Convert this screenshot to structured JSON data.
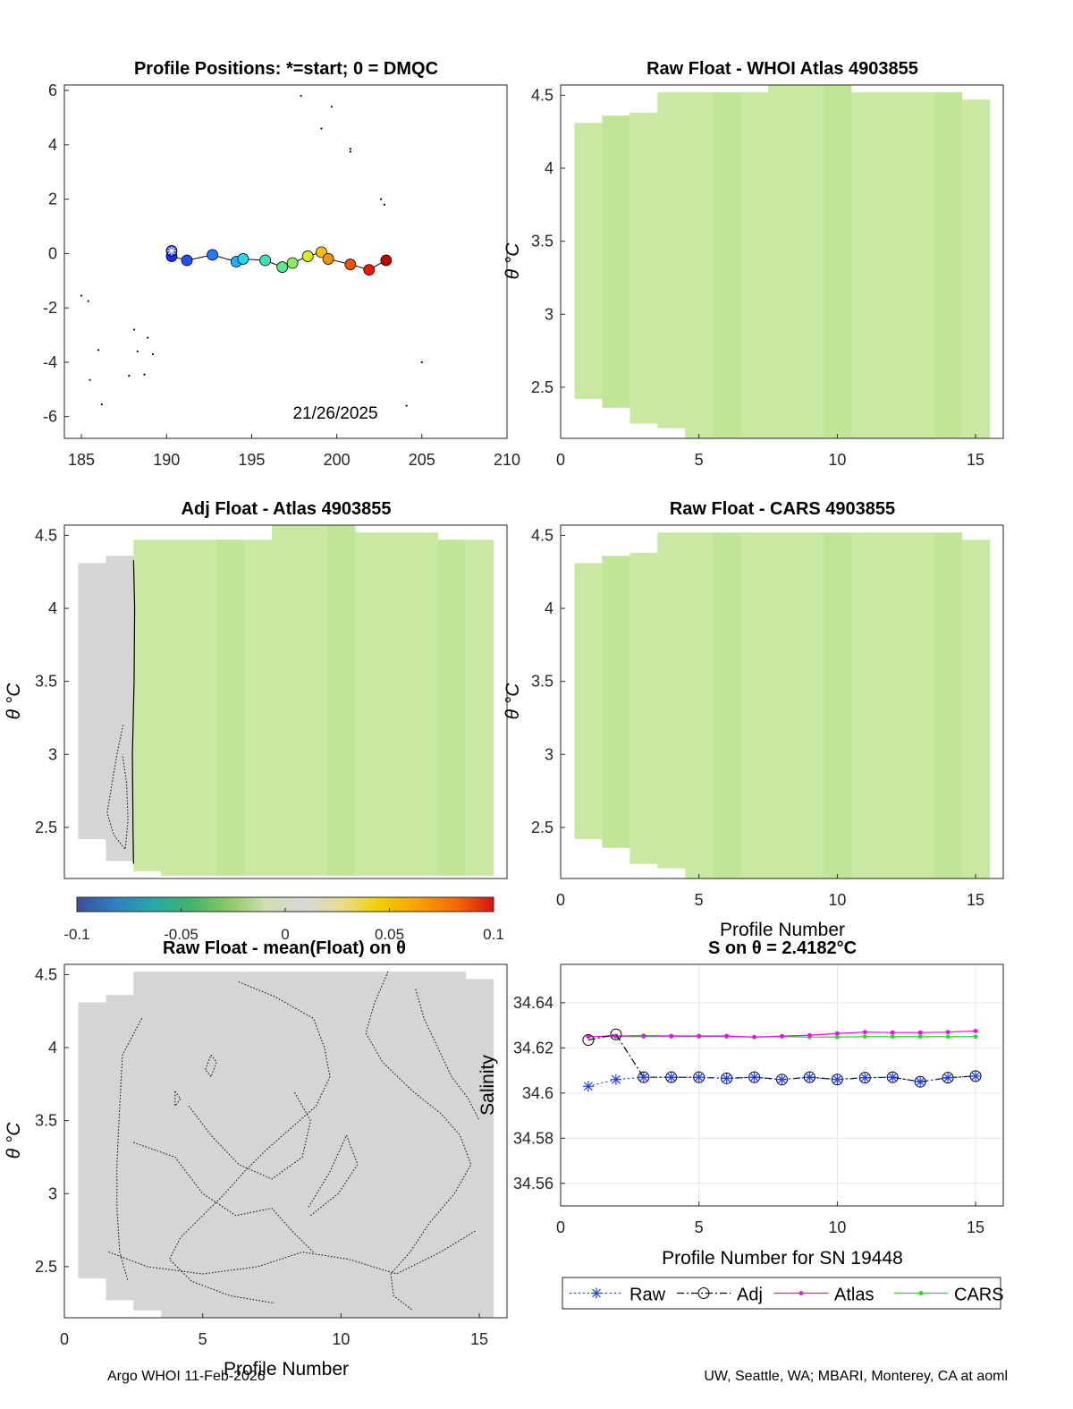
{
  "footer": {
    "left": "Argo WHOI 11-Feb-2026",
    "right": "UW, Seattle, WA; MBARI, Monterey, CA at aoml"
  },
  "colors": {
    "field_green": "#c9e9a3",
    "field_green_dark": "#c1e596",
    "field_gray": "#d5d5d5",
    "raw": "#1f3fff",
    "adj": "#000000",
    "atlas": "#ff00ff",
    "cars": "#22dd22",
    "grid": "#e6e6e6"
  },
  "chart_data": [
    {
      "id": "positions",
      "type": "scatter",
      "title": "Profile Positions: *=start; 0 = DMQC",
      "xlim": [
        184,
        210
      ],
      "ylim": [
        -6.8,
        6.2
      ],
      "xticks": [
        "185",
        "190",
        "195",
        "200",
        "205",
        "210"
      ],
      "yticks": [
        "6",
        "4",
        "2",
        "0",
        "-2",
        "-4",
        "-6"
      ],
      "annotation": "21/26/2025",
      "track_lon": [
        190.3,
        191.2,
        192.7,
        194.1,
        194.5,
        195.8,
        196.8,
        197.4,
        198.3,
        199.1,
        199.5,
        200.8,
        201.9,
        202.9
      ],
      "track_lat": [
        -0.1,
        -0.25,
        -0.05,
        -0.3,
        -0.2,
        -0.25,
        -0.5,
        -0.35,
        -0.1,
        0.05,
        -0.2,
        -0.4,
        -0.6,
        -0.25
      ],
      "track_colors": [
        "#1a2cff",
        "#2050ff",
        "#2a78ff",
        "#1ab0ff",
        "#20d8f0",
        "#39e0b8",
        "#5ae88c",
        "#8cee60",
        "#d8f020",
        "#ffc000",
        "#ff9000",
        "#ff5000",
        "#ee1a00",
        "#c40000"
      ],
      "start": [
        190.3,
        0.1
      ],
      "islands": [
        [
          197.9,
          5.8
        ],
        [
          199.7,
          5.4
        ],
        [
          199.1,
          4.6
        ],
        [
          200.8,
          3.85
        ],
        [
          200.8,
          3.75
        ],
        [
          202.6,
          2.0
        ],
        [
          202.8,
          1.8
        ],
        [
          185.0,
          -1.55
        ],
        [
          185.4,
          -1.75
        ],
        [
          186.0,
          -3.55
        ],
        [
          188.1,
          -2.8
        ],
        [
          188.9,
          -3.1
        ],
        [
          188.3,
          -3.6
        ],
        [
          189.2,
          -3.7
        ],
        [
          187.8,
          -4.5
        ],
        [
          188.7,
          -4.45
        ],
        [
          185.5,
          -4.65
        ],
        [
          186.2,
          -5.55
        ],
        [
          205.0,
          -4.0
        ],
        [
          204.1,
          -5.6
        ]
      ]
    },
    {
      "id": "raw_whoi",
      "type": "heatmap",
      "title": "Raw Float - WHOI Atlas  4903855",
      "xlim": [
        0,
        16
      ],
      "ylim": [
        2.15,
        4.57
      ],
      "xticks": [
        "0",
        "5",
        "10",
        "15"
      ],
      "yticks": [
        "4.5",
        "4",
        "3.5",
        "3",
        "2.5"
      ],
      "ylabel": "θ °C",
      "columns_top": [
        4.31,
        4.36,
        4.38,
        4.52,
        4.52,
        4.52,
        4.52,
        4.57,
        4.57,
        4.57,
        4.52,
        4.52,
        4.52,
        4.52,
        4.47
      ],
      "columns_bottom": [
        2.42,
        2.36,
        2.25,
        2.22,
        2.15,
        2.15,
        2.15,
        2.15,
        2.15,
        2.15,
        2.15,
        2.15,
        2.15,
        2.15,
        2.15
      ]
    },
    {
      "id": "adj_atlas",
      "type": "heatmap",
      "title": "Adj Float - Atlas  4903855",
      "xlim": [
        0,
        16
      ],
      "ylim": [
        2.15,
        4.57
      ],
      "xticks": [],
      "yticks": [
        "4.5",
        "4",
        "3.5",
        "3",
        "2.5"
      ],
      "ylabel": "θ °C",
      "columns_top": [
        4.31,
        4.36,
        4.47,
        4.47,
        4.47,
        4.47,
        4.47,
        4.57,
        4.57,
        4.57,
        4.52,
        4.52,
        4.52,
        4.47,
        4.47
      ],
      "columns_bottom": [
        2.42,
        2.27,
        2.2,
        2.17,
        2.17,
        2.17,
        2.17,
        2.17,
        2.17,
        2.17,
        2.17,
        2.17,
        2.17,
        2.17,
        2.17
      ],
      "gray_columns": [
        1,
        2
      ],
      "colorbar": {
        "ticks": [
          "-0.1",
          "-0.05",
          "0",
          "0.05",
          "0.1"
        ],
        "stops": [
          "#3d4f96",
          "#2f7fbf",
          "#26a8a8",
          "#41b36b",
          "#8cc965",
          "#cfdfb0",
          "#d8d8d8",
          "#e8dc8e",
          "#f0cf00",
          "#f7a200",
          "#f66a00",
          "#d41416"
        ]
      }
    },
    {
      "id": "raw_cars",
      "type": "heatmap",
      "title": "Raw Float - CARS  4903855",
      "xlim": [
        0,
        16
      ],
      "ylim": [
        2.15,
        4.57
      ],
      "xticks": [
        "0",
        "5",
        "10",
        "15"
      ],
      "yticks": [
        "4.5",
        "4",
        "3.5",
        "3",
        "2.5"
      ],
      "xlabel": "Profile Number",
      "ylabel": "θ °C",
      "columns_top": [
        4.31,
        4.36,
        4.38,
        4.52,
        4.52,
        4.52,
        4.52,
        4.52,
        4.52,
        4.52,
        4.52,
        4.52,
        4.52,
        4.52,
        4.47
      ],
      "columns_bottom": [
        2.42,
        2.36,
        2.25,
        2.22,
        2.15,
        2.15,
        2.15,
        2.15,
        2.15,
        2.15,
        2.15,
        2.15,
        2.15,
        2.15,
        2.15
      ]
    },
    {
      "id": "raw_mean",
      "type": "heatmap",
      "title": "Raw Float - mean(Float) on θ",
      "xlim": [
        0,
        16
      ],
      "ylim": [
        2.15,
        4.57
      ],
      "xticks": [
        "0",
        "5",
        "10",
        "15"
      ],
      "yticks": [
        "4.5",
        "4",
        "3.5",
        "3",
        "2.5"
      ],
      "xlabel": "Profile Number",
      "ylabel": "θ °C",
      "columns_top": [
        4.31,
        4.36,
        4.52,
        4.52,
        4.52,
        4.52,
        4.52,
        4.52,
        4.52,
        4.52,
        4.52,
        4.52,
        4.52,
        4.52,
        4.47
      ],
      "columns_bottom": [
        2.42,
        2.27,
        2.2,
        2.15,
        2.15,
        2.15,
        2.15,
        2.15,
        2.15,
        2.15,
        2.15,
        2.15,
        2.15,
        2.15,
        2.15
      ]
    },
    {
      "id": "salinity",
      "type": "line",
      "title": "S on θ = 2.4182°C",
      "xlim": [
        0,
        16
      ],
      "ylim": [
        34.55,
        34.657
      ],
      "xticks": [
        "0",
        "5",
        "10",
        "15"
      ],
      "yticks": [
        "34.64",
        "34.62",
        "34.6",
        "34.58",
        "34.56"
      ],
      "xlabel": "Profile Number for SN 19448",
      "ylabel": "Salinity",
      "x": [
        1,
        2,
        3,
        4,
        5,
        6,
        7,
        8,
        9,
        10,
        11,
        12,
        13,
        14,
        15
      ],
      "series": [
        {
          "name": "Raw",
          "values": [
            34.603,
            34.606,
            34.607,
            34.607,
            34.607,
            34.6065,
            34.607,
            34.606,
            34.607,
            34.606,
            34.6068,
            34.607,
            34.605,
            34.6068,
            34.6075
          ]
        },
        {
          "name": "Adj",
          "values": [
            34.6235,
            34.626,
            34.607,
            34.607,
            34.607,
            34.6065,
            34.607,
            34.606,
            34.607,
            34.606,
            34.6068,
            34.607,
            34.605,
            34.6068,
            34.6075
          ]
        },
        {
          "name": "Atlas",
          "values": [
            34.625,
            34.6253,
            34.6254,
            34.6253,
            34.6253,
            34.6253,
            34.6248,
            34.6252,
            34.6256,
            34.6264,
            34.627,
            34.6268,
            34.6268,
            34.627,
            34.6275
          ]
        },
        {
          "name": "CARS",
          "values": [
            34.625,
            34.625,
            34.625,
            34.625,
            34.625,
            34.625,
            34.6248,
            34.625,
            34.6248,
            34.6248,
            34.625,
            34.625,
            34.625,
            34.625,
            34.625
          ]
        }
      ]
    }
  ]
}
